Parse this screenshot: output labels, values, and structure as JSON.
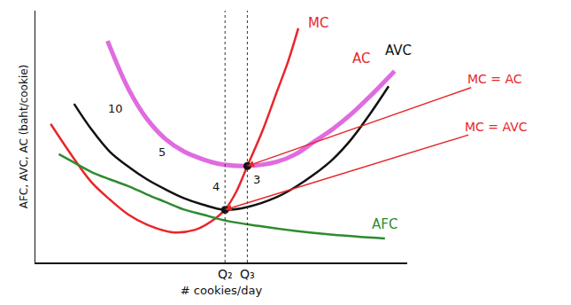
{
  "chart_data": {
    "type": "line",
    "y_label": "AFC, AVC, AC (baht/cookie)",
    "x_label": "# cookies/day",
    "xlim": [
      0,
      10
    ],
    "ylim": [
      0,
      10
    ],
    "xticks": [
      {
        "value": 5.1,
        "label": "Q₂"
      },
      {
        "value": 5.7,
        "label": "Q₃"
      }
    ],
    "tick_labels": "x",
    "grid": false,
    "series": [
      {
        "name": "MC",
        "color": "#e8262a",
        "x": [
          0.41,
          1,
          1.5,
          2,
          2.5,
          3,
          3.68,
          4.3,
          4.7,
          5.1,
          5.4,
          5.7,
          6.1,
          6.5,
          6.8,
          7.07
        ],
        "values": [
          5.5,
          4.2,
          3.2,
          2.5,
          1.9,
          1.5,
          1.2,
          1.3,
          1.6,
          2.1,
          2.8,
          3.83,
          5.2,
          6.8,
          8.0,
          9.3
        ],
        "label_at": [
          7.6,
          9.5
        ]
      },
      {
        "name": "AC",
        "color": "#d63ad6",
        "x": [
          1.94,
          2.5,
          3,
          3.5,
          4,
          4.5,
          5,
          5.7,
          6.5,
          7,
          7.5,
          8,
          8.5,
          9,
          9.66
        ],
        "values": [
          8.8,
          6.9,
          5.7,
          4.9,
          4.4,
          4.1,
          3.9,
          3.83,
          4.0,
          4.3,
          4.8,
          5.3,
          5.9,
          6.6,
          7.6
        ],
        "label_at": [
          8.75,
          8.1
        ],
        "label_color": "#e8262a"
      },
      {
        "name": "AVC",
        "color": "#111111",
        "x": [
          1.04,
          1.5,
          2,
          2.55,
          3,
          3.5,
          4,
          4.5,
          5.1,
          5.7,
          6.5,
          7,
          7.5,
          8,
          8.5,
          9,
          9.5
        ],
        "values": [
          6.3,
          5.3,
          4.4,
          3.75,
          3.3,
          2.9,
          2.55,
          2.3,
          2.09,
          2.2,
          2.6,
          3.0,
          3.5,
          4.1,
          4.9,
          5.9,
          7.0
        ],
        "label_at": [
          9.75,
          8.4
        ]
      },
      {
        "name": "AFC",
        "color": "#2e8b2e",
        "x": [
          0.63,
          1,
          1.5,
          2,
          2.55,
          3,
          3.5,
          4,
          4.5,
          5.15,
          6,
          7,
          8,
          9.4
        ],
        "values": [
          4.3,
          4.0,
          3.6,
          3.3,
          3.0,
          2.7,
          2.4,
          2.1,
          1.9,
          1.65,
          1.45,
          1.25,
          1.1,
          0.95
        ],
        "label_at": [
          9.4,
          1.5
        ]
      }
    ],
    "annotations": [
      {
        "text": "10",
        "x": 2.15,
        "y": 6.1
      },
      {
        "text": "5",
        "x": 3.4,
        "y": 4.4
      },
      {
        "text": "4",
        "x": 4.85,
        "y": 3.0
      },
      {
        "text": "3",
        "x": 5.95,
        "y": 3.3
      }
    ],
    "callouts": [
      {
        "text": "MC = AC",
        "x": 5.7,
        "y": 3.83,
        "color": "#e8262a"
      },
      {
        "text": "MC = AVC",
        "x": 5.1,
        "y": 2.09,
        "color": "#e8262a"
      }
    ]
  }
}
